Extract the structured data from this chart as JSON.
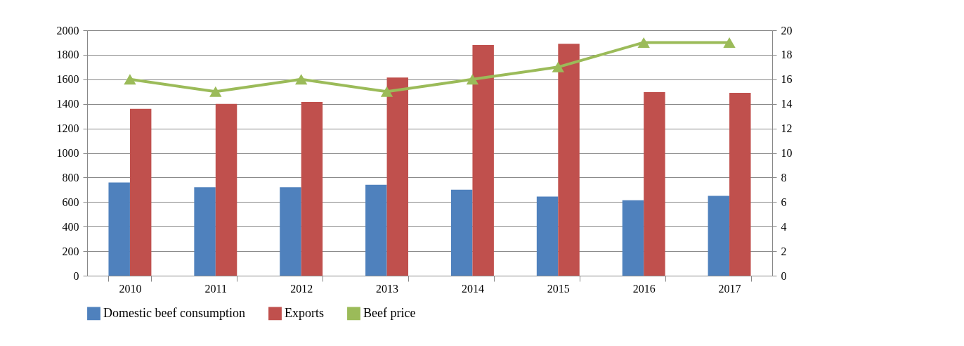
{
  "chart_data": {
    "type": "bar",
    "categories": [
      "2010",
      "2011",
      "2012",
      "2013",
      "2014",
      "2015",
      "2016",
      "2017"
    ],
    "series": [
      {
        "name": "Domestic beef consumption",
        "color": "#4f81bd",
        "values": [
          760,
          720,
          720,
          740,
          700,
          645,
          615,
          650
        ]
      },
      {
        "name": "Exports",
        "color": "#c0504d",
        "values": [
          1360,
          1400,
          1415,
          1615,
          1880,
          1890,
          1495,
          1490
        ]
      },
      {
        "name": "Beef price",
        "type": "line",
        "axis": "y2",
        "color": "#9bbb59",
        "marker": "triangle",
        "values": [
          16,
          15,
          16,
          15,
          16,
          17,
          19,
          19
        ]
      }
    ],
    "ylim": [
      0,
      2000
    ],
    "yticks": [
      0,
      200,
      400,
      600,
      800,
      1000,
      1200,
      1400,
      1600,
      1800,
      2000
    ],
    "y2lim": [
      0,
      20
    ],
    "y2ticks": [
      0,
      2,
      4,
      6,
      8,
      10,
      12,
      14,
      16,
      18,
      20
    ],
    "grid": "y",
    "legend": "bottom"
  }
}
